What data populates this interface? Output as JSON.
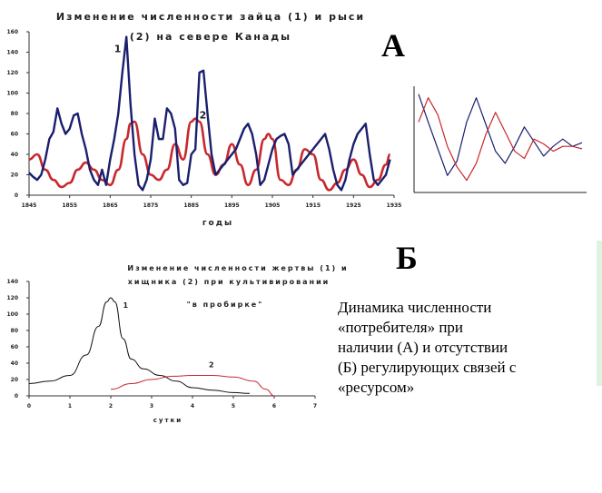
{
  "labels": {
    "letter_a": "А",
    "letter_b": "Б"
  },
  "caption_lines": [
    "Динамика численности",
    "«потребителя» при",
    "наличии (А) и отсутствии",
    "(Б) регулирующих  связей с",
    "«ресурсом»"
  ],
  "colors": {
    "series1": "#1a1f6e",
    "series2": "#c8282d",
    "blackline": "#111111",
    "axis": "#333333"
  },
  "chart_data": [
    {
      "type": "line",
      "title_lines": [
        "Изменение численности зайца (1) и рыси",
        "(2) на севере Канады"
      ],
      "xlabel": "годы",
      "ylabel": "",
      "xlim": [
        1845,
        1935
      ],
      "ylim": [
        0,
        160
      ],
      "x_ticks": [
        1845,
        1855,
        1865,
        1875,
        1885,
        1895,
        1905,
        1915,
        1925,
        1935
      ],
      "y_ticks": [
        0,
        20,
        40,
        60,
        80,
        100,
        120,
        140,
        160
      ],
      "grid": false,
      "annotations": [
        {
          "text": "1",
          "x": 1866,
          "y": 140
        },
        {
          "text": "2",
          "x": 1887,
          "y": 75
        }
      ],
      "series": [
        {
          "name": "1",
          "color": "#1a1f6e",
          "x": [
            1845,
            1846,
            1847,
            1848,
            1849,
            1850,
            1851,
            1852,
            1853,
            1854,
            1855,
            1856,
            1857,
            1858,
            1859,
            1860,
            1861,
            1862,
            1863,
            1864,
            1865,
            1866,
            1867,
            1868,
            1869,
            1870,
            1871,
            1872,
            1873,
            1874,
            1875,
            1876,
            1877,
            1878,
            1879,
            1880,
            1881,
            1882,
            1883,
            1884,
            1885,
            1886,
            1887,
            1888,
            1889,
            1890,
            1891,
            1892,
            1893,
            1894,
            1895,
            1896,
            1897,
            1898,
            1899,
            1900,
            1901,
            1902,
            1903,
            1904,
            1905,
            1906,
            1907,
            1908,
            1909,
            1910,
            1911,
            1912,
            1913,
            1914,
            1915,
            1916,
            1917,
            1918,
            1919,
            1920,
            1921,
            1922,
            1923,
            1924,
            1925,
            1926,
            1927,
            1928,
            1929,
            1930,
            1931,
            1932,
            1933,
            1934
          ],
          "y": [
            22,
            18,
            15,
            20,
            35,
            55,
            62,
            85,
            70,
            60,
            65,
            78,
            80,
            60,
            45,
            25,
            15,
            10,
            25,
            10,
            35,
            55,
            80,
            120,
            155,
            90,
            40,
            10,
            5,
            15,
            35,
            75,
            55,
            55,
            85,
            80,
            65,
            15,
            10,
            12,
            40,
            45,
            120,
            122,
            80,
            40,
            20,
            25,
            30,
            35,
            40,
            45,
            55,
            65,
            70,
            60,
            40,
            10,
            15,
            30,
            45,
            55,
            58,
            60,
            50,
            20,
            25,
            30,
            35,
            40,
            45,
            50,
            55,
            60,
            45,
            25,
            10,
            5,
            15,
            35,
            50,
            60,
            65,
            70,
            40,
            15,
            10,
            15,
            20,
            35
          ],
          "x2": [],
          "ydesc": ""
        },
        {
          "name": "2",
          "color": "#c8282d",
          "x": [
            1845,
            1847,
            1849,
            1851,
            1853,
            1855,
            1857,
            1859,
            1861,
            1863,
            1865,
            1867,
            1869,
            1870,
            1871,
            1873,
            1875,
            1877,
            1879,
            1881,
            1883,
            1885,
            1886,
            1887,
            1889,
            1891,
            1893,
            1895,
            1897,
            1899,
            1901,
            1903,
            1904,
            1905,
            1907,
            1909,
            1911,
            1913,
            1915,
            1917,
            1919,
            1921,
            1923,
            1925,
            1927,
            1929,
            1931,
            1933,
            1934
          ],
          "y": [
            35,
            40,
            25,
            15,
            8,
            12,
            25,
            32,
            25,
            15,
            10,
            25,
            55,
            70,
            72,
            40,
            20,
            15,
            25,
            50,
            35,
            72,
            75,
            72,
            40,
            20,
            30,
            50,
            30,
            10,
            25,
            55,
            60,
            55,
            15,
            10,
            25,
            45,
            40,
            15,
            5,
            12,
            25,
            35,
            20,
            8,
            15,
            30,
            40
          ]
        }
      ]
    },
    {
      "type": "line",
      "title": "",
      "xlabel": "",
      "ylabel": "",
      "grid": false,
      "series": [
        {
          "color": "#1a1f6e",
          "y": [
            95,
            72,
            50,
            28,
            40,
            72,
            92,
            70,
            48,
            38,
            52,
            68,
            56,
            44,
            52,
            58,
            52,
            55
          ]
        },
        {
          "color": "#c8282d",
          "y": [
            72,
            92,
            78,
            52,
            35,
            24,
            38,
            62,
            80,
            64,
            48,
            42,
            58,
            54,
            48,
            52,
            52,
            50
          ]
        }
      ]
    },
    {
      "type": "line",
      "title_lines": [
        "Изменение численности жертвы (1) и",
        "хищника (2) при культивировании",
        "\"в пробирке\""
      ],
      "xlabel": "сутки",
      "ylabel": "",
      "xlim": [
        0,
        7
      ],
      "ylim": [
        0,
        140
      ],
      "x_ticks": [
        0,
        1,
        2,
        3,
        4,
        5,
        6,
        7
      ],
      "y_ticks": [
        0,
        20,
        40,
        60,
        80,
        100,
        120,
        140
      ],
      "grid": false,
      "annotations": [
        {
          "text": "1",
          "x": 2.3,
          "y": 108
        },
        {
          "text": "2",
          "x": 4.4,
          "y": 35
        }
      ],
      "series": [
        {
          "name": "1",
          "color": "#111111",
          "x": [
            0,
            0.5,
            1.0,
            1.4,
            1.7,
            1.9,
            2.0,
            2.1,
            2.3,
            2.5,
            2.8,
            3.2,
            3.6,
            4.0,
            4.5,
            5.0,
            5.4
          ],
          "y": [
            15,
            18,
            25,
            50,
            85,
            115,
            120,
            115,
            70,
            45,
            33,
            25,
            18,
            10,
            7,
            4,
            3
          ]
        },
        {
          "name": "2",
          "color": "#c8282d",
          "x": [
            2.0,
            2.5,
            3.0,
            3.5,
            4.0,
            4.5,
            5.0,
            5.5,
            5.8,
            6.0
          ],
          "y": [
            8,
            15,
            20,
            24,
            25,
            25,
            23,
            18,
            8,
            0
          ]
        }
      ]
    }
  ]
}
